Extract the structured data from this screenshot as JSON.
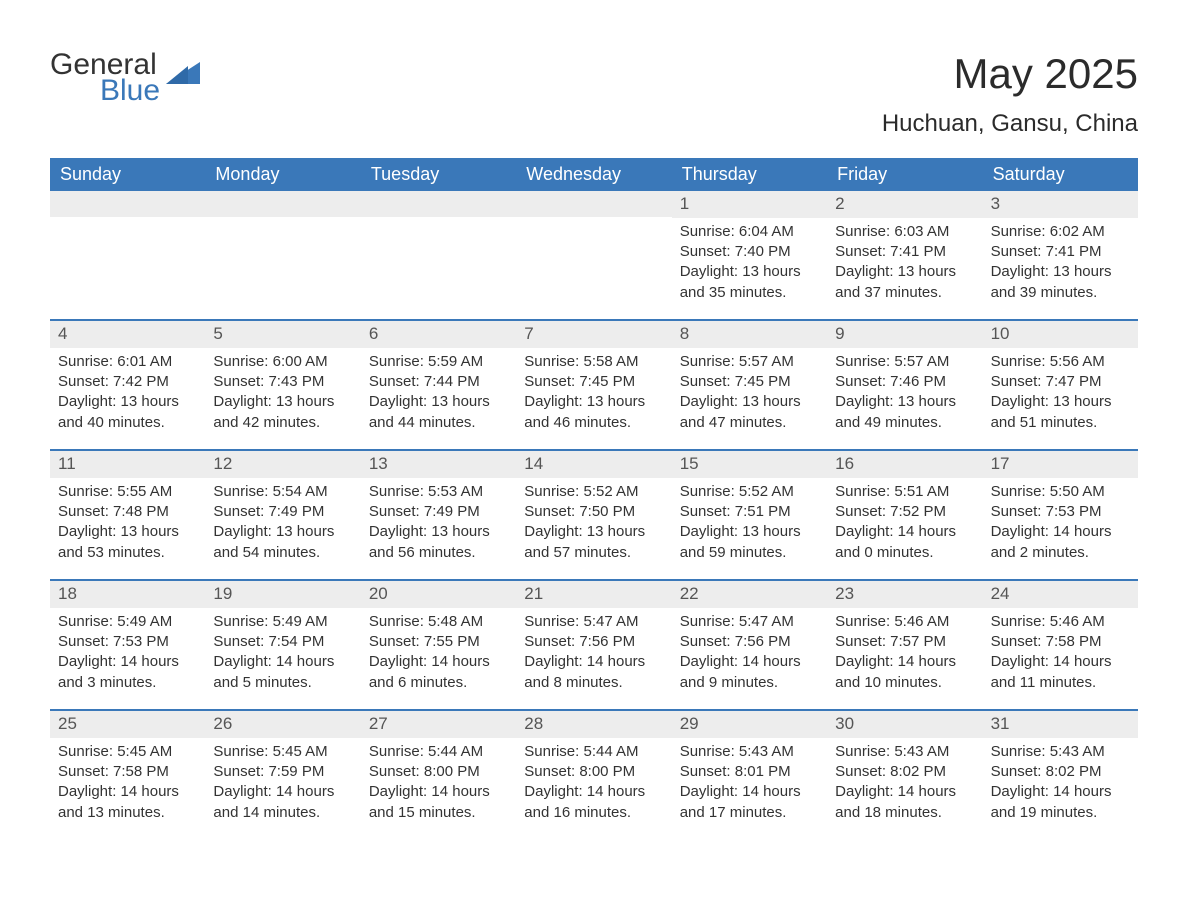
{
  "branding": {
    "logo_text_1": "General",
    "logo_text_2": "Blue",
    "logo_color_text": "#333333",
    "logo_color_accent": "#3a78b9"
  },
  "header": {
    "month_title": "May 2025",
    "location": "Huchuan, Gansu, China"
  },
  "styling": {
    "page_bg": "#ffffff",
    "header_row_bg": "#3a78b9",
    "header_row_text": "#ffffff",
    "daynum_bar_bg": "#ededed",
    "daynum_text": "#555555",
    "row_divider_color": "#3a78b9",
    "body_text": "#333333",
    "title_fontsize_pt": 32,
    "location_fontsize_pt": 18,
    "dayheader_fontsize_pt": 14,
    "cell_fontsize_pt": 11,
    "columns": 7
  },
  "day_headers": [
    "Sunday",
    "Monday",
    "Tuesday",
    "Wednesday",
    "Thursday",
    "Friday",
    "Saturday"
  ],
  "weeks": [
    [
      {
        "day": "",
        "sunrise": "",
        "sunset": "",
        "daylight": ""
      },
      {
        "day": "",
        "sunrise": "",
        "sunset": "",
        "daylight": ""
      },
      {
        "day": "",
        "sunrise": "",
        "sunset": "",
        "daylight": ""
      },
      {
        "day": "",
        "sunrise": "",
        "sunset": "",
        "daylight": ""
      },
      {
        "day": "1",
        "sunrise": "Sunrise: 6:04 AM",
        "sunset": "Sunset: 7:40 PM",
        "daylight": "Daylight: 13 hours and 35 minutes."
      },
      {
        "day": "2",
        "sunrise": "Sunrise: 6:03 AM",
        "sunset": "Sunset: 7:41 PM",
        "daylight": "Daylight: 13 hours and 37 minutes."
      },
      {
        "day": "3",
        "sunrise": "Sunrise: 6:02 AM",
        "sunset": "Sunset: 7:41 PM",
        "daylight": "Daylight: 13 hours and 39 minutes."
      }
    ],
    [
      {
        "day": "4",
        "sunrise": "Sunrise: 6:01 AM",
        "sunset": "Sunset: 7:42 PM",
        "daylight": "Daylight: 13 hours and 40 minutes."
      },
      {
        "day": "5",
        "sunrise": "Sunrise: 6:00 AM",
        "sunset": "Sunset: 7:43 PM",
        "daylight": "Daylight: 13 hours and 42 minutes."
      },
      {
        "day": "6",
        "sunrise": "Sunrise: 5:59 AM",
        "sunset": "Sunset: 7:44 PM",
        "daylight": "Daylight: 13 hours and 44 minutes."
      },
      {
        "day": "7",
        "sunrise": "Sunrise: 5:58 AM",
        "sunset": "Sunset: 7:45 PM",
        "daylight": "Daylight: 13 hours and 46 minutes."
      },
      {
        "day": "8",
        "sunrise": "Sunrise: 5:57 AM",
        "sunset": "Sunset: 7:45 PM",
        "daylight": "Daylight: 13 hours and 47 minutes."
      },
      {
        "day": "9",
        "sunrise": "Sunrise: 5:57 AM",
        "sunset": "Sunset: 7:46 PM",
        "daylight": "Daylight: 13 hours and 49 minutes."
      },
      {
        "day": "10",
        "sunrise": "Sunrise: 5:56 AM",
        "sunset": "Sunset: 7:47 PM",
        "daylight": "Daylight: 13 hours and 51 minutes."
      }
    ],
    [
      {
        "day": "11",
        "sunrise": "Sunrise: 5:55 AM",
        "sunset": "Sunset: 7:48 PM",
        "daylight": "Daylight: 13 hours and 53 minutes."
      },
      {
        "day": "12",
        "sunrise": "Sunrise: 5:54 AM",
        "sunset": "Sunset: 7:49 PM",
        "daylight": "Daylight: 13 hours and 54 minutes."
      },
      {
        "day": "13",
        "sunrise": "Sunrise: 5:53 AM",
        "sunset": "Sunset: 7:49 PM",
        "daylight": "Daylight: 13 hours and 56 minutes."
      },
      {
        "day": "14",
        "sunrise": "Sunrise: 5:52 AM",
        "sunset": "Sunset: 7:50 PM",
        "daylight": "Daylight: 13 hours and 57 minutes."
      },
      {
        "day": "15",
        "sunrise": "Sunrise: 5:52 AM",
        "sunset": "Sunset: 7:51 PM",
        "daylight": "Daylight: 13 hours and 59 minutes."
      },
      {
        "day": "16",
        "sunrise": "Sunrise: 5:51 AM",
        "sunset": "Sunset: 7:52 PM",
        "daylight": "Daylight: 14 hours and 0 minutes."
      },
      {
        "day": "17",
        "sunrise": "Sunrise: 5:50 AM",
        "sunset": "Sunset: 7:53 PM",
        "daylight": "Daylight: 14 hours and 2 minutes."
      }
    ],
    [
      {
        "day": "18",
        "sunrise": "Sunrise: 5:49 AM",
        "sunset": "Sunset: 7:53 PM",
        "daylight": "Daylight: 14 hours and 3 minutes."
      },
      {
        "day": "19",
        "sunrise": "Sunrise: 5:49 AM",
        "sunset": "Sunset: 7:54 PM",
        "daylight": "Daylight: 14 hours and 5 minutes."
      },
      {
        "day": "20",
        "sunrise": "Sunrise: 5:48 AM",
        "sunset": "Sunset: 7:55 PM",
        "daylight": "Daylight: 14 hours and 6 minutes."
      },
      {
        "day": "21",
        "sunrise": "Sunrise: 5:47 AM",
        "sunset": "Sunset: 7:56 PM",
        "daylight": "Daylight: 14 hours and 8 minutes."
      },
      {
        "day": "22",
        "sunrise": "Sunrise: 5:47 AM",
        "sunset": "Sunset: 7:56 PM",
        "daylight": "Daylight: 14 hours and 9 minutes."
      },
      {
        "day": "23",
        "sunrise": "Sunrise: 5:46 AM",
        "sunset": "Sunset: 7:57 PM",
        "daylight": "Daylight: 14 hours and 10 minutes."
      },
      {
        "day": "24",
        "sunrise": "Sunrise: 5:46 AM",
        "sunset": "Sunset: 7:58 PM",
        "daylight": "Daylight: 14 hours and 11 minutes."
      }
    ],
    [
      {
        "day": "25",
        "sunrise": "Sunrise: 5:45 AM",
        "sunset": "Sunset: 7:58 PM",
        "daylight": "Daylight: 14 hours and 13 minutes."
      },
      {
        "day": "26",
        "sunrise": "Sunrise: 5:45 AM",
        "sunset": "Sunset: 7:59 PM",
        "daylight": "Daylight: 14 hours and 14 minutes."
      },
      {
        "day": "27",
        "sunrise": "Sunrise: 5:44 AM",
        "sunset": "Sunset: 8:00 PM",
        "daylight": "Daylight: 14 hours and 15 minutes."
      },
      {
        "day": "28",
        "sunrise": "Sunrise: 5:44 AM",
        "sunset": "Sunset: 8:00 PM",
        "daylight": "Daylight: 14 hours and 16 minutes."
      },
      {
        "day": "29",
        "sunrise": "Sunrise: 5:43 AM",
        "sunset": "Sunset: 8:01 PM",
        "daylight": "Daylight: 14 hours and 17 minutes."
      },
      {
        "day": "30",
        "sunrise": "Sunrise: 5:43 AM",
        "sunset": "Sunset: 8:02 PM",
        "daylight": "Daylight: 14 hours and 18 minutes."
      },
      {
        "day": "31",
        "sunrise": "Sunrise: 5:43 AM",
        "sunset": "Sunset: 8:02 PM",
        "daylight": "Daylight: 14 hours and 19 minutes."
      }
    ]
  ]
}
